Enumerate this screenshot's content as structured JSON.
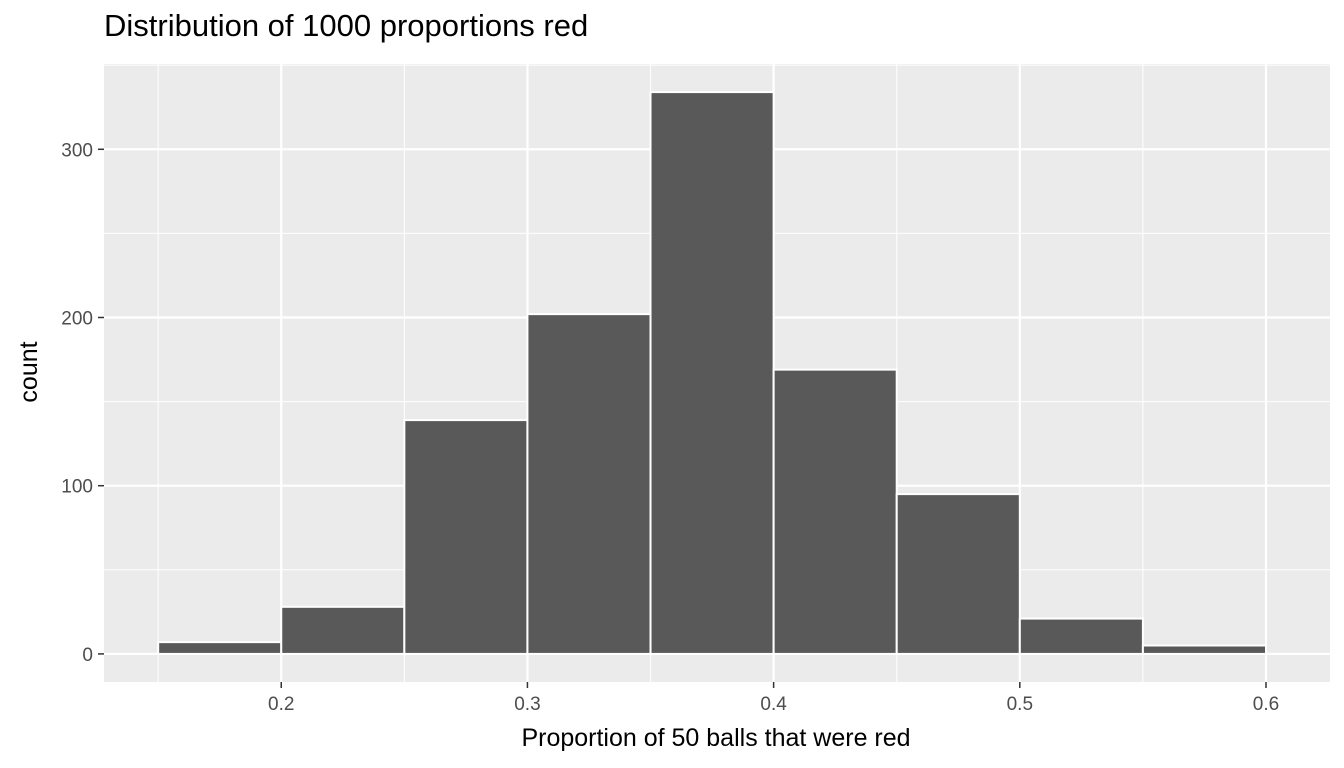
{
  "chart_data": {
    "type": "bar",
    "title": "Distribution of 1000 proportions red",
    "xlabel": "Proportion of 50 balls that were red",
    "ylabel": "count",
    "bin_width": 0.05,
    "bins": [
      {
        "start": 0.15,
        "end": 0.2,
        "count": 7
      },
      {
        "start": 0.2,
        "end": 0.25,
        "count": 28
      },
      {
        "start": 0.25,
        "end": 0.3,
        "count": 139
      },
      {
        "start": 0.3,
        "end": 0.35,
        "count": 202
      },
      {
        "start": 0.35,
        "end": 0.4,
        "count": 334
      },
      {
        "start": 0.4,
        "end": 0.45,
        "count": 169
      },
      {
        "start": 0.45,
        "end": 0.5,
        "count": 95
      },
      {
        "start": 0.5,
        "end": 0.55,
        "count": 21
      },
      {
        "start": 0.55,
        "end": 0.6,
        "count": 5
      }
    ],
    "xlim": [
      0.128,
      0.626
    ],
    "ylim": [
      -16.7,
      350.7
    ],
    "x_ticks": [
      0.2,
      0.3,
      0.4,
      0.5,
      0.6
    ],
    "x_tick_labels": [
      "0.2",
      "0.3",
      "0.4",
      "0.5",
      "0.6"
    ],
    "y_ticks": [
      0,
      100,
      200,
      300
    ],
    "y_tick_labels": [
      "0",
      "100",
      "200",
      "300"
    ],
    "grid": true,
    "colors": {
      "panel_background": "#ebebeb",
      "grid_major": "#ffffff",
      "bar_fill": "#595959",
      "bar_outline": "#ffffff",
      "tick_text": "#4d4d4d"
    }
  }
}
